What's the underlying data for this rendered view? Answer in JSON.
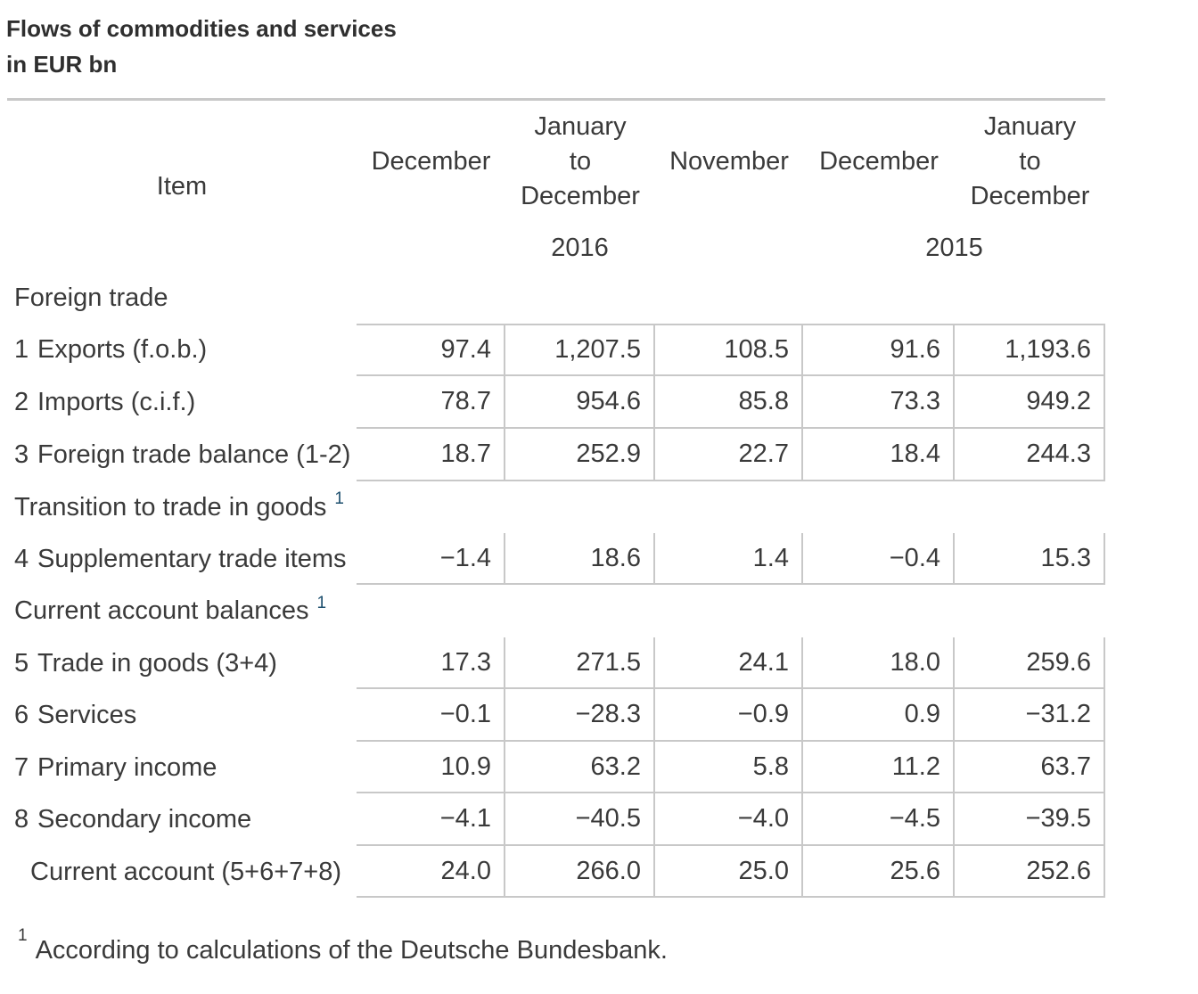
{
  "title": {
    "line1": "Flows of commodities and services",
    "line2": "in EUR bn"
  },
  "table": {
    "item_header": "Item",
    "month_headers": [
      "December",
      "January\nto\nDecember",
      "November",
      "December",
      "January\nto\nDecember"
    ],
    "year_groups": {
      "y2016": "2016",
      "y2015": "2015"
    },
    "rows": [
      {
        "type": "section",
        "label": "Foreign trade"
      },
      {
        "type": "data",
        "num": "1",
        "label": "Exports (f.o.b.)",
        "values": [
          "97.4",
          "1,207.5",
          "108.5",
          "91.6",
          "1,193.6"
        ]
      },
      {
        "type": "data",
        "num": "2",
        "label": "Imports (c.i.f.)",
        "values": [
          "78.7",
          "954.6",
          "85.8",
          "73.3",
          "949.2"
        ]
      },
      {
        "type": "data",
        "num": "3",
        "label": "Foreign trade balance (1-2)",
        "values": [
          "18.7",
          "252.9",
          "22.7",
          "18.4",
          "244.3"
        ]
      },
      {
        "type": "section",
        "label": "Transition to trade in goods",
        "sup": "1"
      },
      {
        "type": "data",
        "num": "4",
        "label": "Supplementary trade items",
        "values": [
          "−1.4",
          "18.6",
          "1.4",
          "−0.4",
          "15.3"
        ]
      },
      {
        "type": "section",
        "label": "Current account balances",
        "sup": "1"
      },
      {
        "type": "data",
        "num": "5",
        "label": "Trade in goods (3+4)",
        "values": [
          "17.3",
          "271.5",
          "24.1",
          "18.0",
          "259.6"
        ]
      },
      {
        "type": "data",
        "num": "6",
        "label": "Services",
        "values": [
          "−0.1",
          "−28.3",
          "−0.9",
          "0.9",
          "−31.2"
        ]
      },
      {
        "type": "data",
        "num": "7",
        "label": "Primary income",
        "values": [
          "10.9",
          "63.2",
          "5.8",
          "11.2",
          "63.7"
        ]
      },
      {
        "type": "data",
        "num": "8",
        "label": "Secondary income",
        "values": [
          "−4.1",
          "−40.5",
          "−4.0",
          "−4.5",
          "−39.5"
        ]
      },
      {
        "type": "data",
        "num": "",
        "label": "Current account (5+6+7+8)",
        "values": [
          "24.0",
          "266.0",
          "25.0",
          "25.6",
          "252.6"
        ]
      }
    ]
  },
  "footnote": {
    "marker": "1",
    "text": "According to calculations of the Deutsche Bundesbank."
  },
  "colors": {
    "grid_line": "#c8c8c8",
    "text": "#3a3a3a",
    "footnote_ref": "#1d4f6e"
  }
}
